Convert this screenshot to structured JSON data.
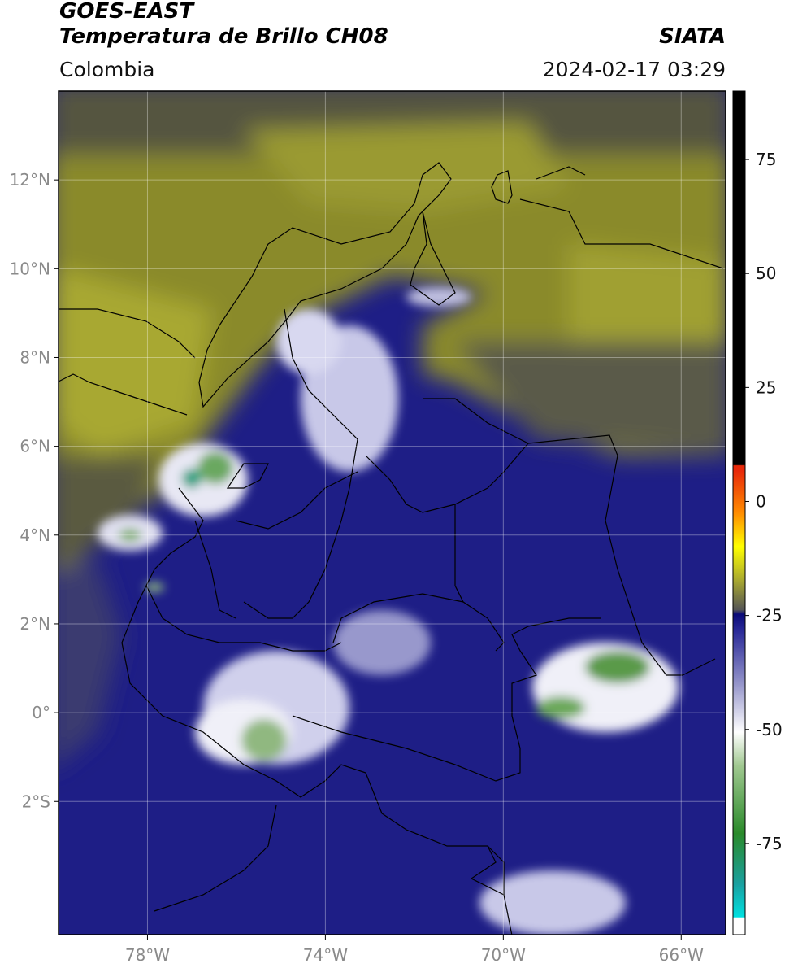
{
  "header": {
    "satellite": "GOES-EAST",
    "product": "Temperatura de Brillo CH08",
    "region": "Colombia",
    "agency": "SIATA",
    "timestamp": "2024-02-17 03:29"
  },
  "map": {
    "lon_range": [
      -80,
      -65
    ],
    "lat_range": [
      -5,
      14
    ],
    "x_ticks": [
      {
        "value": -78,
        "label": "78°W"
      },
      {
        "value": -74,
        "label": "74°W"
      },
      {
        "value": -70,
        "label": "70°W"
      },
      {
        "value": -66,
        "label": "66°W"
      }
    ],
    "y_ticks": [
      {
        "value": 12,
        "label": "12°N"
      },
      {
        "value": 10,
        "label": "10°N"
      },
      {
        "value": 8,
        "label": "8°N"
      },
      {
        "value": 6,
        "label": "6°N"
      },
      {
        "value": 4,
        "label": "4°N"
      },
      {
        "value": 2,
        "label": "2°N"
      },
      {
        "value": 0,
        "label": "0°"
      },
      {
        "value": -2,
        "label": "2°S"
      }
    ],
    "grid": true
  },
  "colorbar": {
    "range": [
      -95,
      90
    ],
    "ticks": [
      {
        "value": 75,
        "label": "75"
      },
      {
        "value": 50,
        "label": "50"
      },
      {
        "value": 25,
        "label": "25"
      },
      {
        "value": 0,
        "label": "0"
      },
      {
        "value": -25,
        "label": "-25"
      },
      {
        "value": -50,
        "label": "-50"
      },
      {
        "value": -75,
        "label": "-75"
      }
    ],
    "colors": {
      "black": "#000000",
      "red": "#e8290a",
      "orange": "#ff8c00",
      "yellow": "#ffff00",
      "olive": "#a8a830",
      "grey": "#555555",
      "navy": "#0a0a78",
      "blue": "#3a3aa0",
      "lavender": "#b0b0d8",
      "white": "#ffffff",
      "green": "#3a8a2a",
      "cyan": "#00e0e0"
    }
  }
}
